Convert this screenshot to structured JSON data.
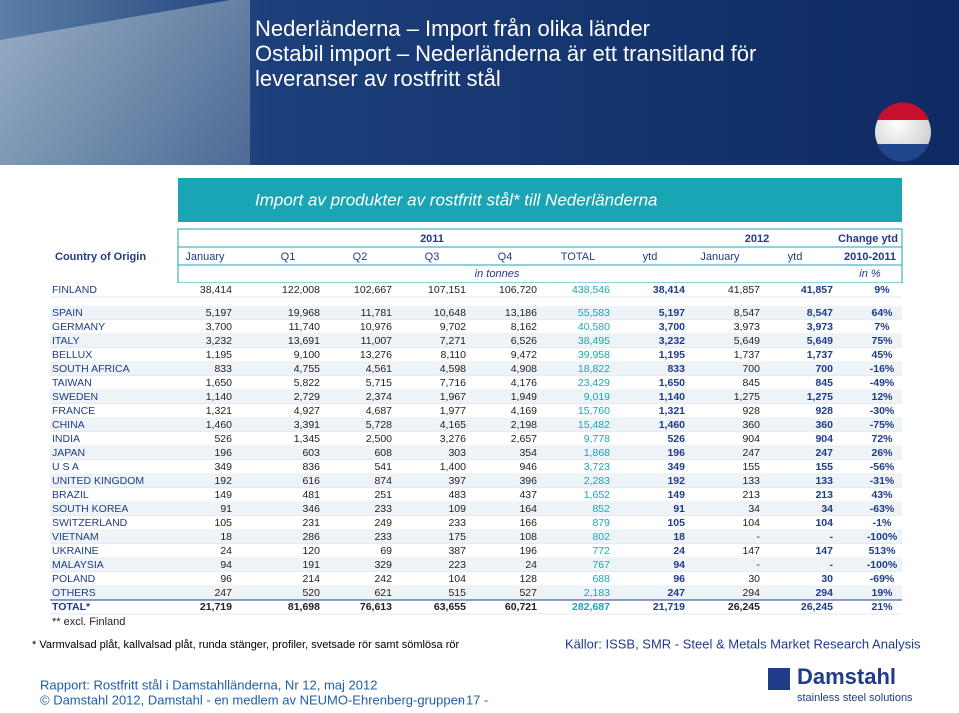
{
  "header": {
    "title_lines": [
      "Nederländerna – Import från olika länder",
      "Ostabil import – Nederländerna är ett transitland för",
      "leveranser av rostfritt stål"
    ]
  },
  "banner": "Import av produkter av rostfritt stål* till Nederländerna",
  "table": {
    "group_headers": [
      "2011",
      "2012",
      "Change ytd"
    ],
    "columns": [
      "Country of Origin",
      "January",
      "Q1",
      "Q2",
      "Q3",
      "Q4",
      "TOTAL",
      "ytd",
      "January",
      "ytd",
      "2010-2011"
    ],
    "units": [
      "in tonnes",
      "in %"
    ],
    "rows": [
      [
        "FINLAND",
        "38,414",
        "122,008",
        "102,667",
        "107,151",
        "106,720",
        "438,546",
        "38,414",
        "41,857",
        "41,857",
        "9%"
      ],
      [
        "SPAIN",
        "5,197",
        "19,968",
        "11,781",
        "10,648",
        "13,186",
        "55,583",
        "5,197",
        "8,547",
        "8,547",
        "64%"
      ],
      [
        "GERMANY",
        "3,700",
        "11,740",
        "10,976",
        "9,702",
        "8,162",
        "40,580",
        "3,700",
        "3,973",
        "3,973",
        "7%"
      ],
      [
        "ITALY",
        "3,232",
        "13,691",
        "11,007",
        "7,271",
        "6,526",
        "38,495",
        "3,232",
        "5,649",
        "5,649",
        "75%"
      ],
      [
        "BELLUX",
        "1,195",
        "9,100",
        "13,276",
        "8,110",
        "9,472",
        "39,958",
        "1,195",
        "1,737",
        "1,737",
        "45%"
      ],
      [
        "SOUTH AFRICA",
        "833",
        "4,755",
        "4,561",
        "4,598",
        "4,908",
        "18,822",
        "833",
        "700",
        "700",
        "-16%"
      ],
      [
        "TAIWAN",
        "1,650",
        "5,822",
        "5,715",
        "7,716",
        "4,176",
        "23,429",
        "1,650",
        "845",
        "845",
        "-49%"
      ],
      [
        "SWEDEN",
        "1,140",
        "2,729",
        "2,374",
        "1,967",
        "1,949",
        "9,019",
        "1,140",
        "1,275",
        "1,275",
        "12%"
      ],
      [
        "FRANCE",
        "1,321",
        "4,927",
        "4,687",
        "1,977",
        "4,169",
        "15,760",
        "1,321",
        "928",
        "928",
        "-30%"
      ],
      [
        "CHINA",
        "1,460",
        "3,391",
        "5,728",
        "4,165",
        "2,198",
        "15,482",
        "1,460",
        "360",
        "360",
        "-75%"
      ],
      [
        "INDIA",
        "526",
        "1,345",
        "2,500",
        "3,276",
        "2,657",
        "9,778",
        "526",
        "904",
        "904",
        "72%"
      ],
      [
        "JAPAN",
        "196",
        "603",
        "608",
        "303",
        "354",
        "1,868",
        "196",
        "247",
        "247",
        "26%"
      ],
      [
        "U S A",
        "349",
        "836",
        "541",
        "1,400",
        "946",
        "3,723",
        "349",
        "155",
        "155",
        "-56%"
      ],
      [
        "UNITED KINGDOM",
        "192",
        "616",
        "874",
        "397",
        "396",
        "2,283",
        "192",
        "133",
        "133",
        "-31%"
      ],
      [
        "BRAZIL",
        "149",
        "481",
        "251",
        "483",
        "437",
        "1,652",
        "149",
        "213",
        "213",
        "43%"
      ],
      [
        "SOUTH KOREA",
        "91",
        "346",
        "233",
        "109",
        "164",
        "852",
        "91",
        "34",
        "34",
        "-63%"
      ],
      [
        "SWITZERLAND",
        "105",
        "231",
        "249",
        "233",
        "166",
        "879",
        "105",
        "104",
        "104",
        "-1%"
      ],
      [
        "VIETNAM",
        "18",
        "286",
        "233",
        "175",
        "108",
        "802",
        "18",
        "-",
        "-",
        "-100%"
      ],
      [
        "UKRAINE",
        "24",
        "120",
        "69",
        "387",
        "196",
        "772",
        "24",
        "147",
        "147",
        "513%"
      ],
      [
        "MALAYSIA",
        "94",
        "191",
        "329",
        "223",
        "24",
        "767",
        "94",
        "-",
        "-",
        "-100%"
      ],
      [
        "POLAND",
        "96",
        "214",
        "242",
        "104",
        "128",
        "688",
        "96",
        "30",
        "30",
        "-69%"
      ],
      [
        "OTHERS",
        "247",
        "520",
        "621",
        "515",
        "527",
        "2,183",
        "247",
        "294",
        "294",
        "19%"
      ],
      [
        "TOTAL*",
        "21,719",
        "81,698",
        "76,613",
        "63,655",
        "60,721",
        "282,687",
        "21,719",
        "26,245",
        "26,245",
        "21%"
      ]
    ],
    "note": "** excl. Finland"
  },
  "footnote": "* Varmvalsad plåt, kallvalsad plåt, runda stänger, profiler, svetsade rör samt sömlösa rör",
  "source": "Källor: ISSB, SMR - Steel & Metals Market Research Analysis",
  "footer": {
    "report": "Rapport: Rostfritt stål i Damstahlländerna, Nr 12, maj 2012",
    "copyright": "© Damstahl 2012, Damstahl - en medlem av NEUMO-Ehrenberg-gruppen",
    "page": "- 17 -"
  },
  "logo": {
    "name": "Damstahl",
    "tagline": "stainless steel solutions"
  }
}
